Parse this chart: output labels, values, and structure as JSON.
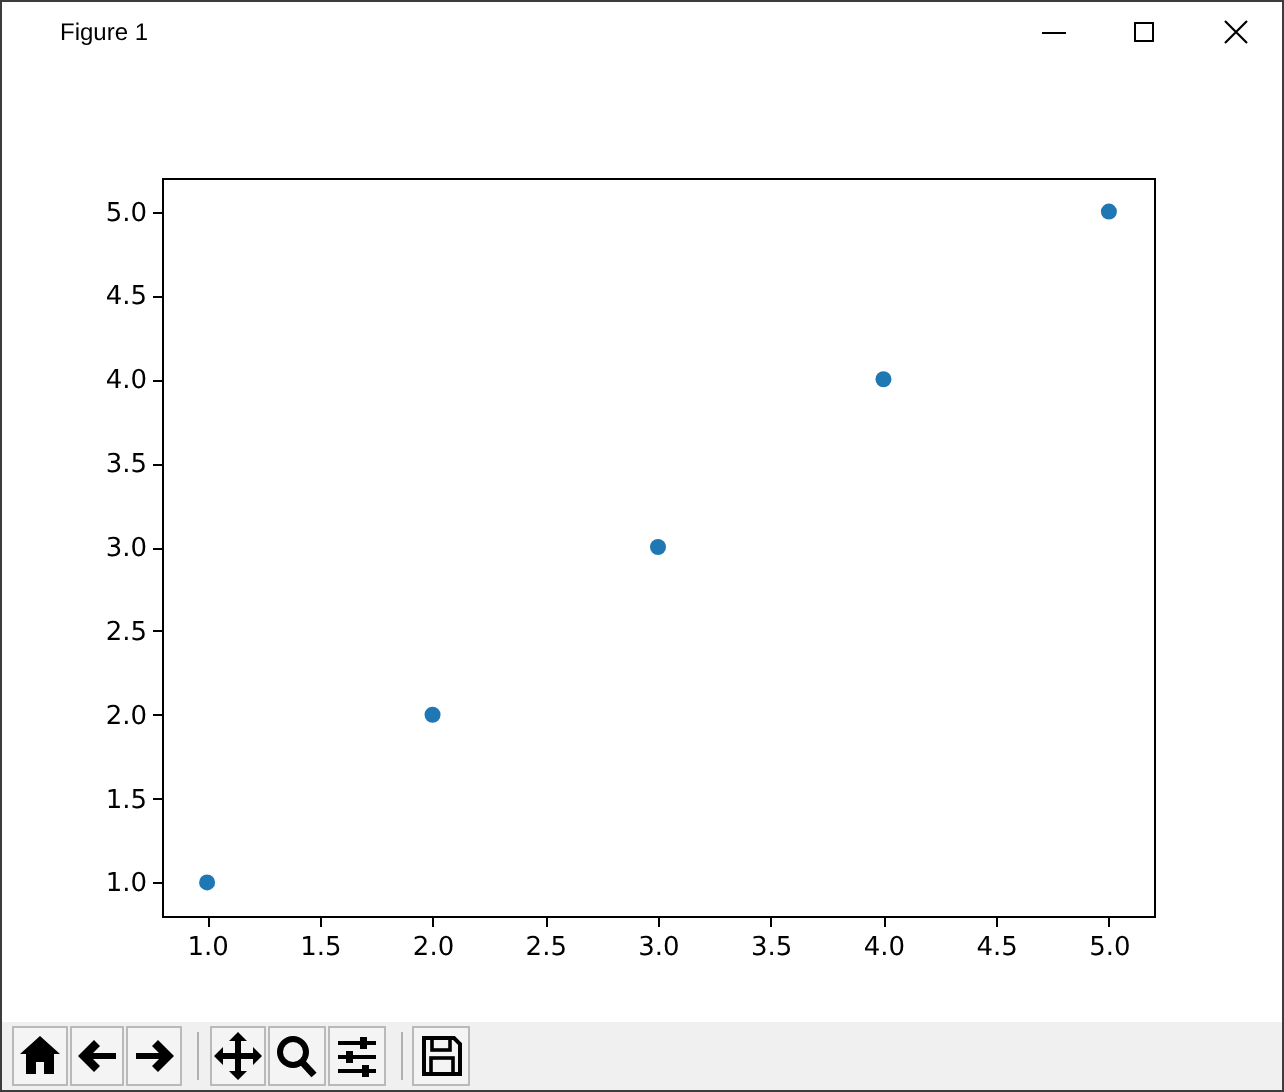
{
  "chart_data": {
    "type": "scatter",
    "annotations": [
      "Figure 1"
    ],
    "x": [
      1,
      2,
      3,
      4,
      5
    ],
    "values": [
      1,
      2,
      3,
      4,
      5
    ],
    "color": "#1f77b4",
    "marker": "circle",
    "xlim": [
      0.8,
      5.2
    ],
    "ylim": [
      0.8,
      5.2
    ],
    "xticks": [
      {
        "value": 1,
        "label": "1.0"
      },
      1.5,
      {
        "value": 2,
        "label": "2.0"
      },
      2.5,
      {
        "value": 3,
        "label": "3.0"
      },
      3.5,
      {
        "value": 4,
        "label": "4.0"
      },
      4.5,
      {
        "value": 5,
        "label": "5.0"
      }
    ],
    "yticks": [
      {
        "value": 1,
        "label": "1.0"
      },
      1.5,
      {
        "value": 2,
        "label": "2.0"
      },
      2.5,
      {
        "value": 3,
        "label": "3.0"
      },
      3.5,
      {
        "value": 4,
        "label": "4.0"
      },
      4.5,
      {
        "value": 5,
        "label": "5.0"
      }
    ]
  }
}
